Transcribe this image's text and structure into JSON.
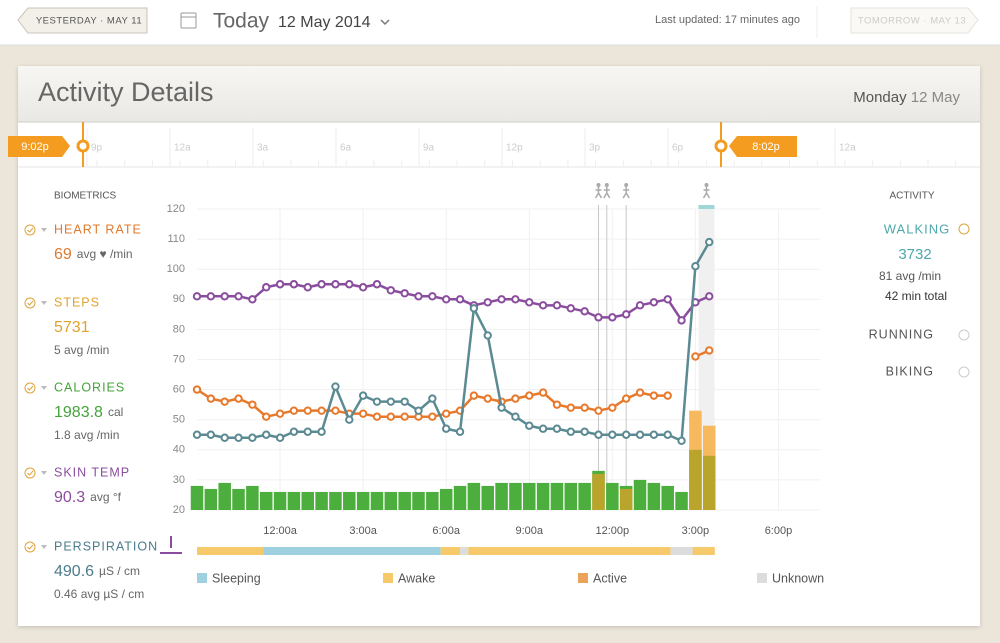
{
  "header": {
    "prev": "YESTERDAY · MAY 11",
    "title": "Today",
    "date": "12 May 2014",
    "updated": "Last updated: 17 minutes ago",
    "next": "TOMORROW · MAY 13"
  },
  "panel": {
    "title": "Activity Details",
    "weekday": "Monday",
    "date": "12 May"
  },
  "timeline": {
    "start": "9:02p",
    "end": "8:02p",
    "labels": [
      "9p",
      "12a",
      "3a",
      "6a",
      "9a",
      "12p",
      "3p",
      "6p",
      "12a"
    ]
  },
  "biometrics": {
    "heading": "BIOMETRICS",
    "items": [
      {
        "name": "HEART RATE",
        "color": "#e07a2e",
        "value": "69",
        "unit": "avg ♥ /min"
      },
      {
        "name": "STEPS",
        "color": "#e0a22c",
        "value": "5731",
        "avg": "5 avg /min"
      },
      {
        "name": "CALORIES",
        "color": "#45a33a",
        "value": "1983.8",
        "unit": "cal",
        "avg": "1.8 avg /min"
      },
      {
        "name": "SKIN TEMP",
        "color": "#8a4d9e",
        "value": "90.3",
        "unit": "avg °f"
      },
      {
        "name": "PERSPIRATION",
        "color": "#4b7c8b",
        "value": "490.6",
        "unit": "µS / cm",
        "avg": "0.46 avg µS / cm"
      }
    ]
  },
  "activity": {
    "heading": "ACTIVITY",
    "items": [
      {
        "name": "WALKING",
        "color": "#4ea8ac",
        "value": "3732",
        "avg": "81 avg /min",
        "total": "42 min total"
      },
      {
        "name": "RUNNING",
        "color": "#555555"
      },
      {
        "name": "BIKING",
        "color": "#555555"
      }
    ]
  },
  "chart": {
    "type": "line",
    "x": [
      -3,
      -2.5,
      -2,
      -1.5,
      -1,
      -0.5,
      0,
      0.5,
      1,
      1.5,
      2,
      2.5,
      3,
      3.5,
      4,
      4.5,
      5,
      5.5,
      6,
      6.5,
      7,
      7.5,
      8,
      8.5,
      9,
      9.5,
      10,
      10.5,
      11,
      11.5,
      12,
      12.5,
      13,
      13.5,
      14,
      14.5,
      15,
      15.5
    ],
    "xlim": [
      -3,
      19.5
    ],
    "xticks": [
      {
        "value": 0,
        "label": "12:00a"
      },
      {
        "value": 3,
        "label": "3:00a"
      },
      {
        "value": 6,
        "label": "6:00a"
      },
      {
        "value": 9,
        "label": "9:00a"
      },
      {
        "value": 12,
        "label": "12:00p"
      },
      {
        "value": 15,
        "label": "3:00p"
      },
      {
        "value": 18,
        "label": "6:00p"
      }
    ],
    "ylim": [
      20,
      120
    ],
    "yticks": [
      20,
      30,
      40,
      50,
      60,
      70,
      80,
      90,
      100,
      110,
      120
    ],
    "grid": true,
    "bars": [
      {
        "color": "#4cae3c",
        "values": [
          28,
          27,
          29,
          27,
          28,
          26,
          26,
          26,
          26,
          26,
          26,
          26,
          26,
          26,
          26,
          26,
          26,
          26,
          27,
          28,
          29,
          28,
          29,
          29,
          29,
          29,
          29,
          29,
          29,
          33,
          29,
          28,
          30,
          29,
          28,
          26,
          40,
          38
        ]
      },
      {
        "color": "#f7b95e",
        "values": [
          null,
          null,
          null,
          null,
          null,
          null,
          null,
          null,
          null,
          null,
          null,
          null,
          null,
          null,
          null,
          null,
          null,
          null,
          null,
          null,
          null,
          null,
          null,
          null,
          null,
          null,
          null,
          null,
          null,
          null,
          null,
          null,
          null,
          null,
          null,
          null,
          53,
          48
        ]
      },
      {
        "color": "#b9a52c",
        "values": [
          null,
          null,
          null,
          null,
          null,
          null,
          null,
          null,
          null,
          null,
          null,
          null,
          null,
          null,
          null,
          null,
          null,
          null,
          null,
          null,
          null,
          null,
          null,
          null,
          null,
          null,
          null,
          null,
          null,
          32,
          null,
          27,
          null,
          null,
          null,
          null,
          40,
          38
        ]
      }
    ],
    "series": [
      {
        "color": "#8a4d9e",
        "values": [
          91,
          91,
          91,
          91,
          90,
          94,
          95,
          95,
          94,
          95,
          95,
          95,
          94,
          95,
          93,
          92,
          91,
          91,
          90,
          90,
          88,
          89,
          90,
          90,
          89,
          88,
          88,
          87,
          86,
          84,
          84,
          85,
          88,
          89,
          90,
          83,
          89,
          91
        ]
      },
      {
        "color": "#e8782a",
        "values": [
          60,
          57,
          56,
          57,
          55,
          51,
          52,
          53,
          53,
          53,
          53,
          52,
          52,
          51,
          51,
          51,
          51,
          51,
          52,
          53,
          58,
          57,
          56,
          57,
          58,
          59,
          55,
          54,
          54,
          53,
          54,
          57,
          59,
          58,
          58,
          null,
          71,
          73
        ]
      },
      {
        "color": "#5b8a93",
        "values": [
          45,
          45,
          44,
          44,
          44,
          45,
          44,
          46,
          46,
          46,
          61,
          50,
          58,
          56,
          56,
          56,
          53,
          57,
          47,
          46,
          87,
          78,
          54,
          51,
          48,
          47,
          47,
          46,
          46,
          45,
          45,
          45,
          45,
          45,
          45,
          43,
          101,
          109
        ]
      }
    ],
    "walks": [
      11.5,
      11.8,
      12.5,
      15.4
    ],
    "states": [
      {
        "label": "Sleeping",
        "color": "#9fd0df"
      },
      {
        "label": "Awake",
        "color": "#f6c96a"
      },
      {
        "label": "Active",
        "color": "#eba35c"
      },
      {
        "label": "Unknown",
        "color": "#dcdcdc"
      }
    ],
    "segments": [
      {
        "start": -3,
        "end": -0.6,
        "state": 1
      },
      {
        "start": -0.6,
        "end": 5.8,
        "state": 0
      },
      {
        "start": 5.8,
        "end": 6.5,
        "state": 1
      },
      {
        "start": 6.5,
        "end": 6.8,
        "state": 3
      },
      {
        "start": 6.8,
        "end": 14.1,
        "state": 1
      },
      {
        "start": 14.1,
        "end": 14.9,
        "state": 3
      },
      {
        "start": 14.9,
        "end": 15.7,
        "state": 1
      }
    ]
  }
}
